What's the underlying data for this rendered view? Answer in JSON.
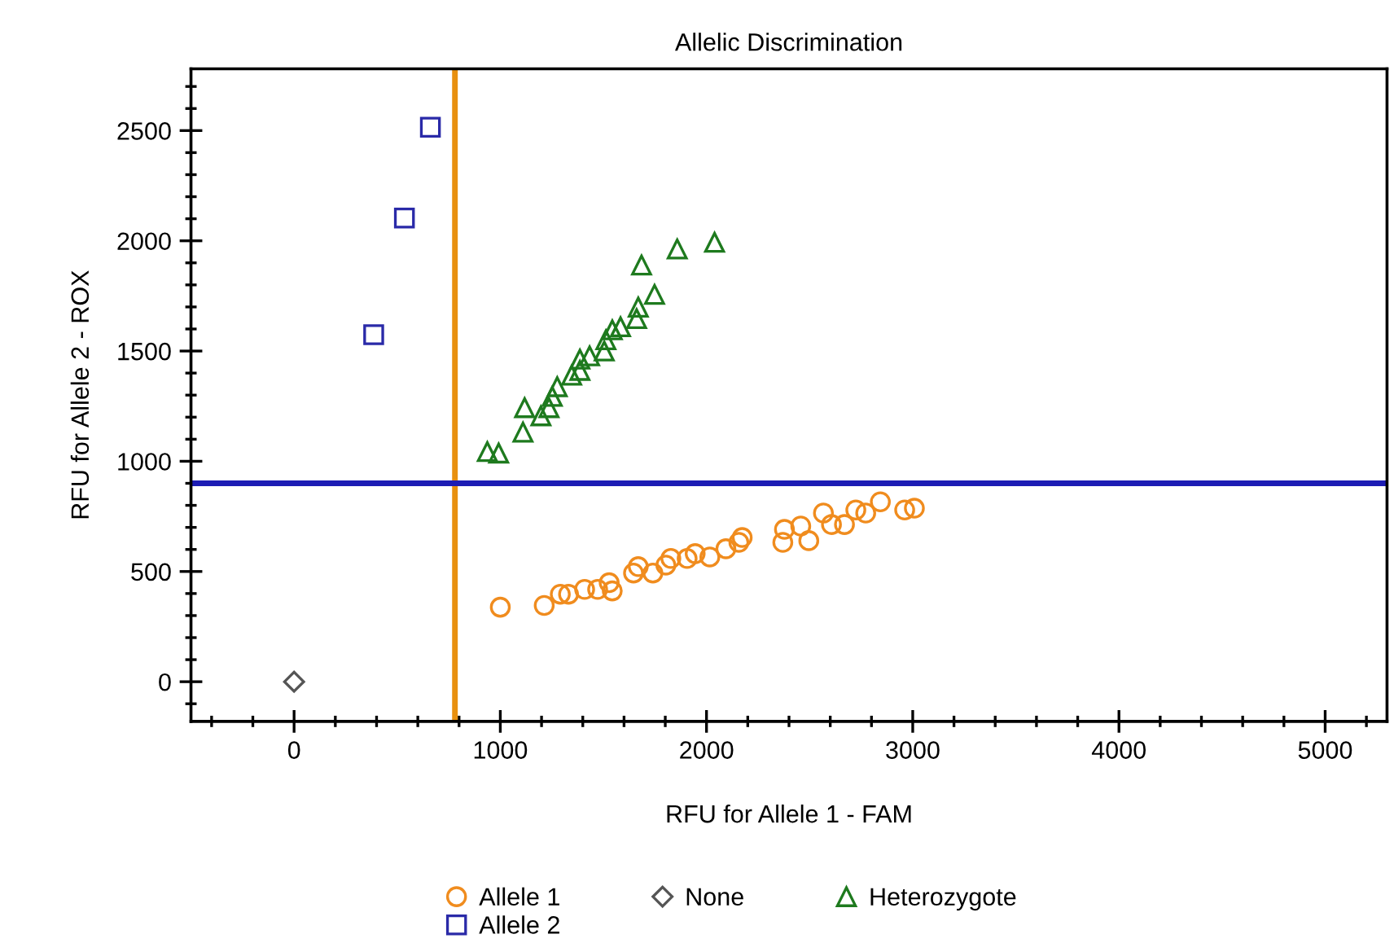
{
  "chart_data": {
    "type": "scatter",
    "title": "Allelic Discrimination",
    "xlabel": "RFU for Allele 1 - FAM",
    "ylabel": "RFU for Allele 2 - ROX",
    "xlim": [
      -500,
      5300
    ],
    "ylim": [
      -180,
      2780
    ],
    "xticks": [
      0,
      1000,
      2000,
      3000,
      4000,
      5000
    ],
    "yticks": [
      0,
      500,
      1000,
      1500,
      2000,
      2500
    ],
    "grid": false,
    "legend": "bottom",
    "ref_lines": [
      {
        "axis": "x",
        "value": 780,
        "color": "#e8900f"
      },
      {
        "axis": "y",
        "value": 900,
        "color": "#1c1cb4"
      }
    ],
    "series": [
      {
        "name": "Allele 1",
        "color": "#f08c1e",
        "marker": "circle",
        "x": [
          1000,
          1213,
          1291,
          1331,
          1409,
          1472,
          1543,
          1528,
          1646,
          1669,
          1740,
          1803,
          1827,
          1906,
          1945,
          2016,
          2094,
          2157,
          2173,
          2370,
          2378,
          2457,
          2496,
          2567,
          2606,
          2669,
          2724,
          2772,
          2843,
          2961,
          3008
        ],
        "values": [
          338,
          346,
          397,
          397,
          419,
          419,
          412,
          449,
          493,
          522,
          493,
          529,
          559,
          559,
          581,
          566,
          603,
          632,
          654,
          632,
          691,
          706,
          640,
          765,
          713,
          713,
          779,
          765,
          816,
          779,
          787
        ]
      },
      {
        "name": "Allele 2",
        "color": "#2a2aa8",
        "marker": "square",
        "x": [
          386,
          535,
          661
        ],
        "values": [
          1574,
          2103,
          2515
        ]
      },
      {
        "name": "None",
        "color": "#555555",
        "marker": "diamond",
        "x": [
          0
        ],
        "values": [
          0
        ]
      },
      {
        "name": "Heterozygote",
        "color": "#1e7a1e",
        "marker": "triangle",
        "x": [
          937,
          992,
          1110,
          1118,
          1197,
          1236,
          1252,
          1276,
          1346,
          1386,
          1386,
          1433,
          1504,
          1512,
          1543,
          1583,
          1661,
          1669,
          1748,
          1685,
          1858,
          2039
        ],
        "values": [
          1044,
          1037,
          1132,
          1243,
          1206,
          1243,
          1294,
          1338,
          1390,
          1412,
          1463,
          1478,
          1500,
          1551,
          1596,
          1610,
          1647,
          1699,
          1757,
          1890,
          1963,
          1993
        ]
      }
    ]
  }
}
